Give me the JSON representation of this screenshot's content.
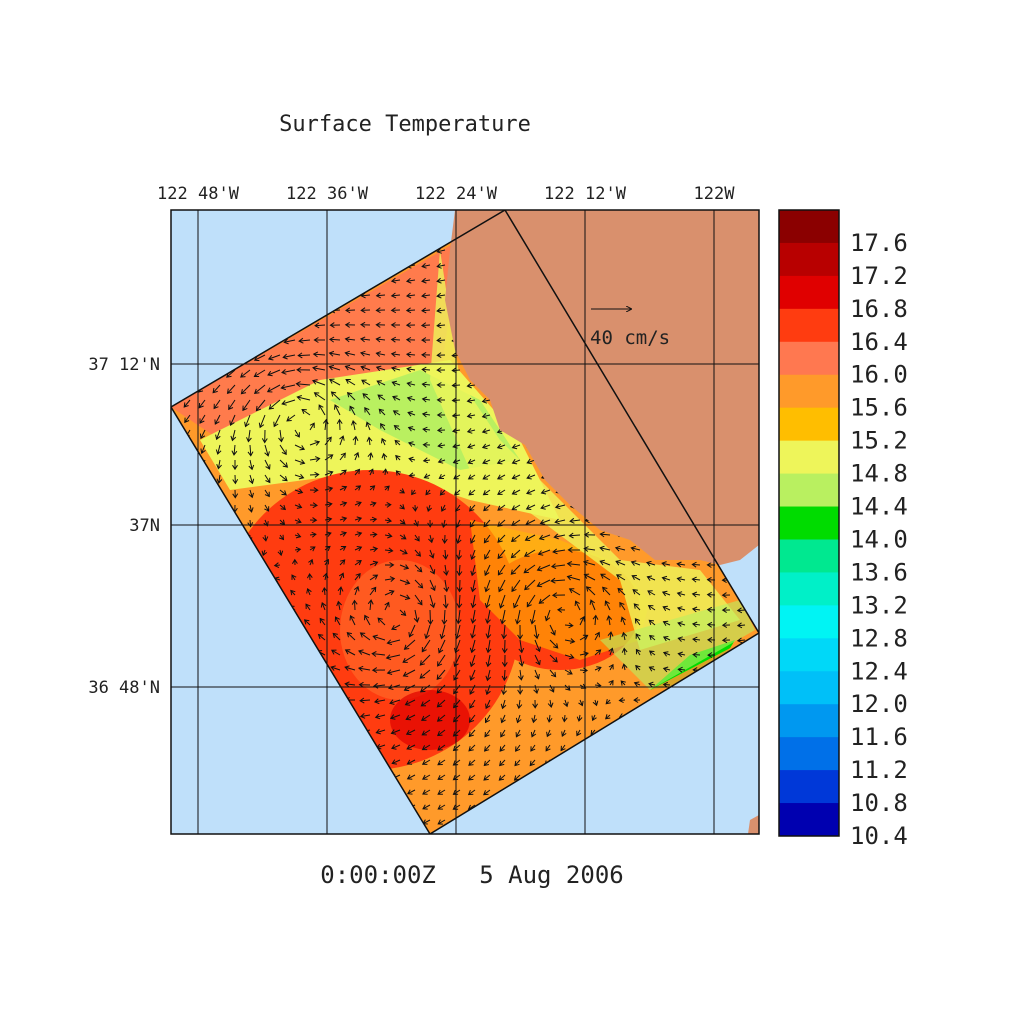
{
  "title": "Surface Temperature",
  "timestamp": "0:00:00Z   5 Aug 2006",
  "lon_labels": [
    "122 48'W",
    "122 36'W",
    "122 24'W",
    "122 12'W",
    "122W"
  ],
  "lat_labels": [
    "37 12'N",
    "37N",
    "36 48'N"
  ],
  "vector_scale_label": "40 cm/s",
  "colorbar": {
    "labels": [
      "17.6",
      "17.2",
      "16.8",
      "16.4",
      "16.0",
      "15.6",
      "15.2",
      "14.8",
      "14.4",
      "14.0",
      "13.6",
      "13.2",
      "12.8",
      "12.4",
      "12.0",
      "11.6",
      "11.2",
      "10.8",
      "10.4"
    ],
    "colors": [
      "#8b0000",
      "#b80000",
      "#e00000",
      "#ff3c10",
      "#ff7850",
      "#ff9a2a",
      "#ffbe00",
      "#eef55a",
      "#b9f060",
      "#00dc00",
      "#00e890",
      "#00f0c8",
      "#00f4f4",
      "#00d8f8",
      "#00c0f8",
      "#0098f0",
      "#0070e8",
      "#0038d8",
      "#0000b0"
    ]
  },
  "colors": {
    "ocean": "#bfe0fa",
    "land": "#d9906d",
    "grid": "#111111"
  }
}
